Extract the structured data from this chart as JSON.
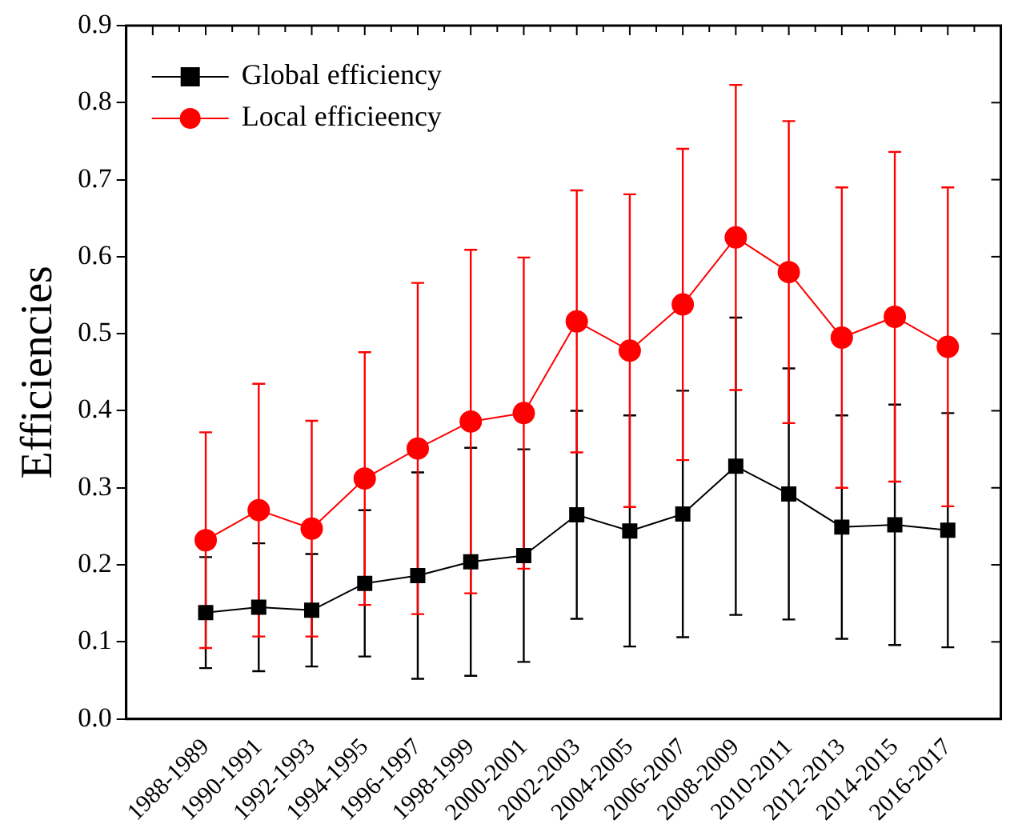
{
  "chart_data": {
    "type": "line",
    "ylabel": "Efficiencies",
    "categories": [
      "1988-1989",
      "1990-1991",
      "1992-1993",
      "1994-1995",
      "1996-1997",
      "1998-1999",
      "2000-2001",
      "2002-2003",
      "2004-2005",
      "2006-2007",
      "2008-2009",
      "2010-2011",
      "2012-2013",
      "2014-2015",
      "2016-2017"
    ],
    "series": [
      {
        "name": "Global efficiency",
        "color": "#000000",
        "marker": "square",
        "values": [
          0.138,
          0.145,
          0.141,
          0.176,
          0.186,
          0.204,
          0.212,
          0.265,
          0.244,
          0.266,
          0.328,
          0.292,
          0.249,
          0.252,
          0.245
        ],
        "errors": [
          0.072,
          0.083,
          0.073,
          0.095,
          0.134,
          0.148,
          0.138,
          0.135,
          0.15,
          0.16,
          0.193,
          0.163,
          0.145,
          0.156,
          0.152
        ]
      },
      {
        "name": "Local efficieency",
        "color": "#ff0000",
        "marker": "circle",
        "values": [
          0.232,
          0.271,
          0.247,
          0.312,
          0.351,
          0.386,
          0.397,
          0.516,
          0.478,
          0.538,
          0.625,
          0.58,
          0.495,
          0.522,
          0.483
        ],
        "errors": [
          0.14,
          0.164,
          0.14,
          0.164,
          0.215,
          0.223,
          0.202,
          0.17,
          0.203,
          0.202,
          0.198,
          0.196,
          0.195,
          0.214,
          0.207
        ]
      }
    ],
    "ylim": [
      0,
      0.9
    ],
    "yticks": [
      {
        "value": 0,
        "label": "0.0"
      },
      0.1,
      0.2,
      0.3,
      0.4,
      0.5,
      0.6,
      0.7,
      0.8,
      0.9
    ],
    "grid": false,
    "legend": "top left",
    "line_style": "solid"
  }
}
